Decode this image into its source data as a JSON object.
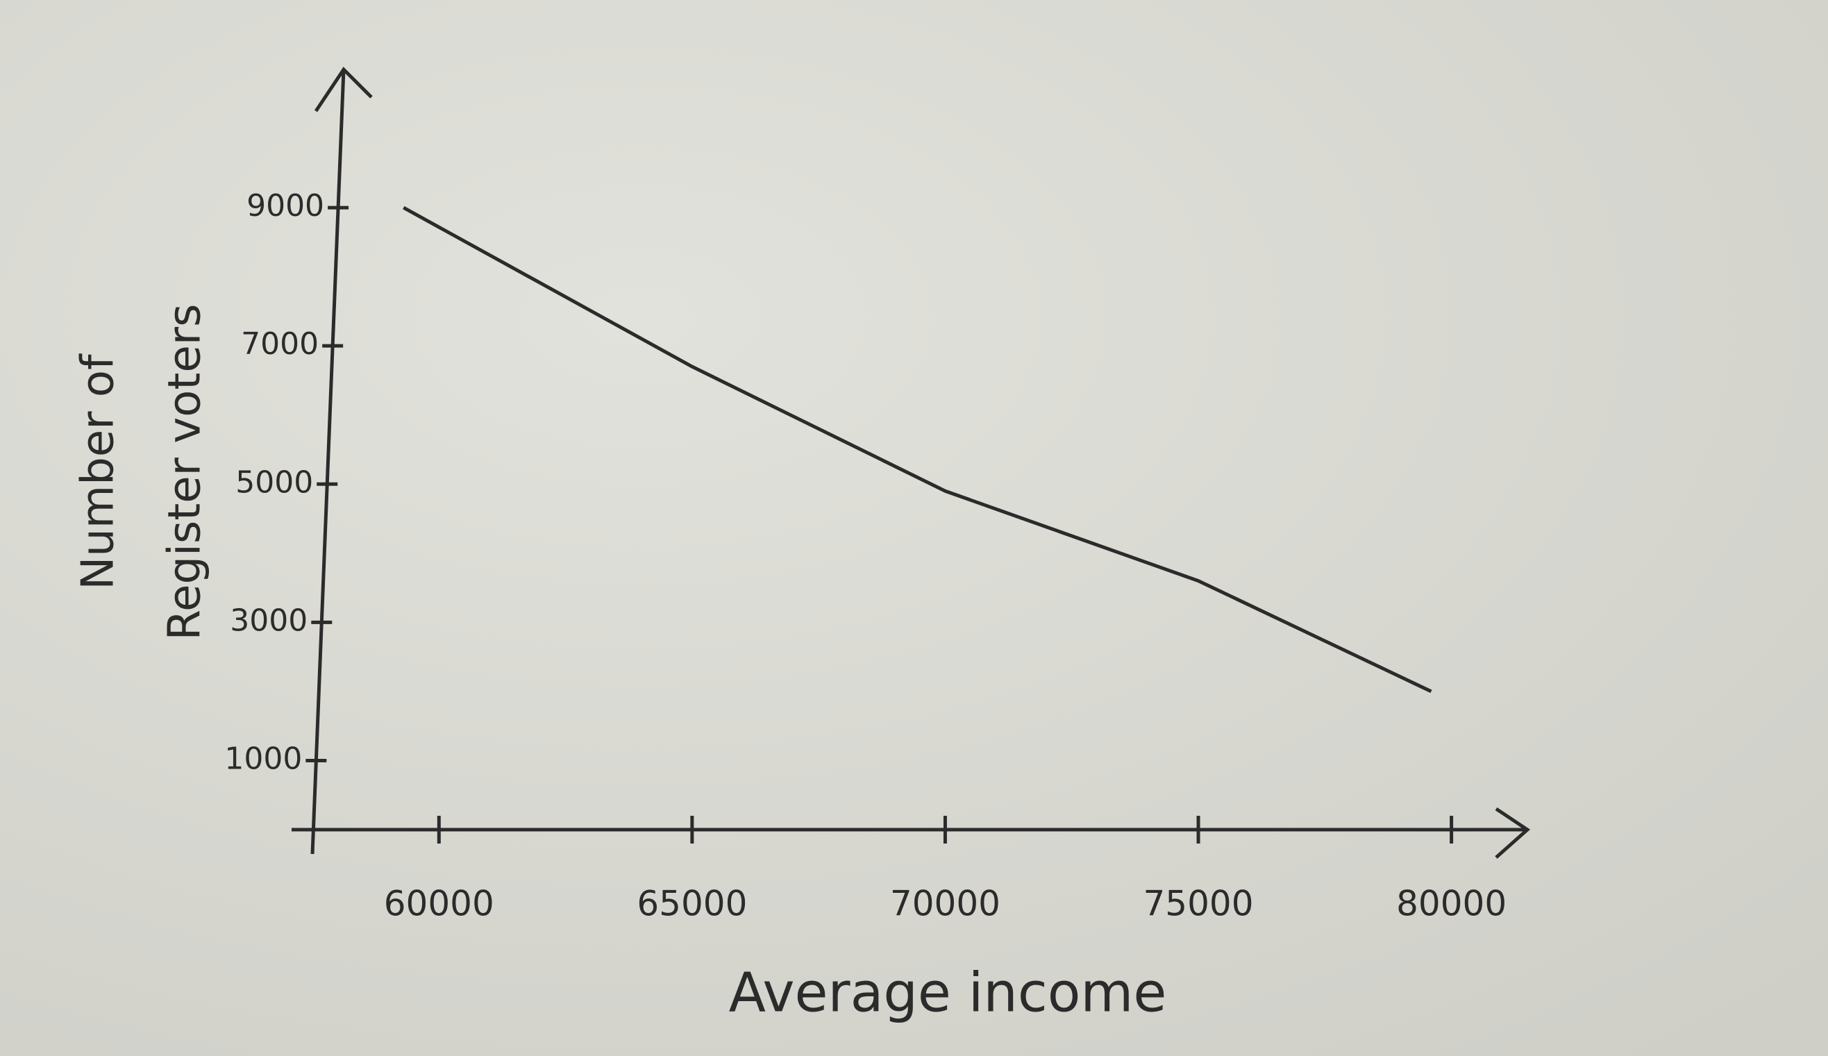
{
  "chart_data": {
    "type": "line",
    "y_label_lines": [
      "Number of",
      "Register voters"
    ],
    "x_label": "Average income",
    "x": [
      59300,
      65000,
      70000,
      75000,
      79600
    ],
    "series": [
      {
        "name": "Number of Register voters",
        "color": "#2b2b2b",
        "values": [
          9000,
          6700,
          4900,
          3600,
          2000
        ]
      }
    ],
    "xlim": [
      57500,
      81500
    ],
    "xticks": [
      60000,
      65000,
      70000,
      75000,
      80000
    ],
    "ylim": [
      0,
      11000
    ],
    "yticks": [
      1000,
      3000,
      5000,
      7000,
      9000
    ],
    "grid": false
  }
}
